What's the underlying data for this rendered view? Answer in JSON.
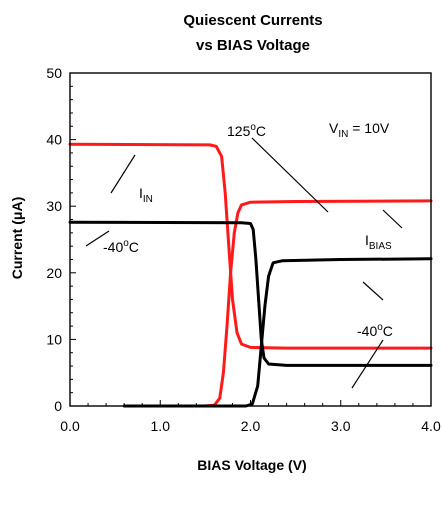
{
  "chart_data": {
    "type": "line",
    "title": [
      "Quiescent Currents",
      "vs BIAS Voltage"
    ],
    "xlabel": "BIAS Voltage (V)",
    "ylabel_parts": {
      "pre": "Current (",
      "mu": "μ",
      "post": "A)"
    },
    "xlim": [
      0,
      4
    ],
    "ylim": [
      0,
      50
    ],
    "x_ticks": [
      "0.0",
      "1.0",
      "2.0",
      "3.0",
      "4.0"
    ],
    "y_ticks": [
      "0",
      "10",
      "20",
      "30",
      "40",
      "50"
    ],
    "grid": false,
    "colors": {
      "hot": "#ff1a1a",
      "cold": "#000000"
    },
    "annotations": {
      "hot_temp": {
        "value": "125",
        "unit": "C"
      },
      "cold_temp_left": {
        "value": "-40",
        "unit": "C"
      },
      "cold_temp_right": {
        "value": "-40",
        "unit": "C"
      },
      "vin": {
        "main": "V",
        "sub": "IN",
        "rest": " = 10V"
      },
      "iin": {
        "main": "I",
        "sub": "IN"
      },
      "ibias": {
        "main": "I",
        "sub": "BIAS"
      }
    },
    "series": [
      {
        "color": "hot",
        "points": [
          [
            0,
            39.3
          ],
          [
            1.55,
            39.2
          ],
          [
            1.62,
            39.0
          ],
          [
            1.68,
            37.5
          ],
          [
            1.72,
            32
          ],
          [
            1.76,
            24
          ],
          [
            1.8,
            16
          ],
          [
            1.85,
            11
          ],
          [
            1.9,
            9.3
          ],
          [
            2.0,
            8.8
          ],
          [
            2.4,
            8.7
          ],
          [
            4.0,
            8.7
          ]
        ]
      },
      {
        "color": "hot",
        "points": [
          [
            1.48,
            0
          ],
          [
            1.6,
            0.1
          ],
          [
            1.66,
            1.2
          ],
          [
            1.7,
            5
          ],
          [
            1.74,
            12
          ],
          [
            1.78,
            20
          ],
          [
            1.82,
            26
          ],
          [
            1.86,
            29
          ],
          [
            1.9,
            30.2
          ],
          [
            2.0,
            30.6
          ],
          [
            2.5,
            30.7
          ],
          [
            4.0,
            30.8
          ]
        ]
      },
      {
        "color": "cold",
        "points": [
          [
            0,
            27.6
          ],
          [
            1.9,
            27.5
          ],
          [
            2.0,
            27.4
          ],
          [
            2.03,
            26.5
          ],
          [
            2.06,
            22
          ],
          [
            2.09,
            16
          ],
          [
            2.12,
            10
          ],
          [
            2.15,
            7.2
          ],
          [
            2.2,
            6.3
          ],
          [
            2.4,
            6.1
          ],
          [
            4.0,
            6.1
          ]
        ]
      },
      {
        "color": "cold",
        "points": [
          [
            0.6,
            0
          ],
          [
            1.95,
            0
          ],
          [
            2.02,
            0.3
          ],
          [
            2.08,
            3
          ],
          [
            2.12,
            9
          ],
          [
            2.16,
            15
          ],
          [
            2.2,
            19.5
          ],
          [
            2.25,
            21.5
          ],
          [
            2.35,
            21.8
          ],
          [
            3.0,
            22.0
          ],
          [
            4.0,
            22.1
          ]
        ]
      }
    ]
  }
}
